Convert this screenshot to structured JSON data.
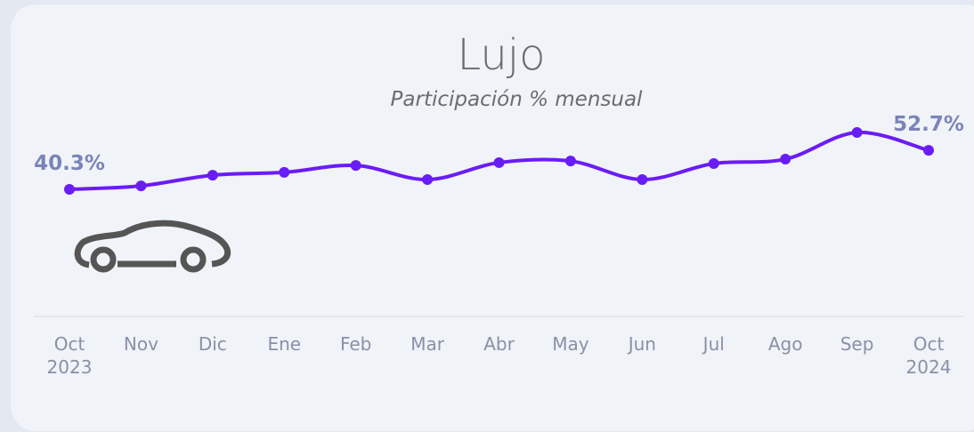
{
  "chart_data": {
    "type": "line",
    "title": "Lujo",
    "subtitle": "Participación % mensual",
    "categories": [
      "Oct 2023",
      "Nov",
      "Dic",
      "Ene",
      "Feb",
      "Mar",
      "Abr",
      "May",
      "Jun",
      "Jul",
      "Ago",
      "Sep",
      "Oct 2024"
    ],
    "series": [
      {
        "name": "Lujo",
        "color": "#6a1cf6",
        "values": [
          40.3,
          41.4,
          44.8,
          45.7,
          47.9,
          43.4,
          48.8,
          49.3,
          43.4,
          48.5,
          49.9,
          58.4,
          52.7
        ],
        "value_labels": [
          "40.3%",
          null,
          null,
          null,
          null,
          null,
          null,
          null,
          null,
          null,
          null,
          null,
          "52.7%"
        ]
      }
    ]
  }
}
